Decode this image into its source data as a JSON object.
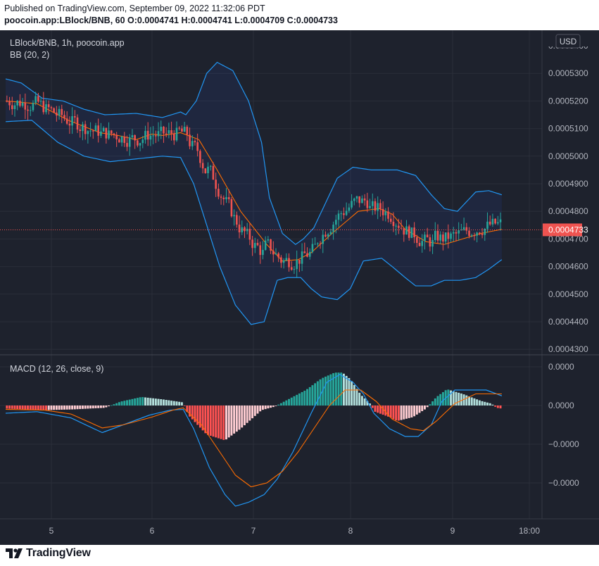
{
  "header": {
    "published": "Published on TradingView.com, September 09, 2022 11:32:06 PDT",
    "symbol": "poocoin.app:LBlock/BNB, 60",
    "open_label": "O:",
    "open": "0.0004741",
    "high_label": "H:",
    "high": "0.0004741",
    "low_label": "L:",
    "low": "0.0004709",
    "close_label": "C:",
    "close": "0.0004733"
  },
  "chart_data": [
    {
      "type": "candlestick",
      "title": "LBlock/BNB, 1h, poocoin.app",
      "indicator_label": "BB (20, 2)",
      "currency": "USD",
      "ylim": [
        0.000428,
        0.000544
      ],
      "y_ticks": [
        "0.0005300",
        "0.0005200",
        "0.0005100",
        "0.0005000",
        "0.0004900",
        "0.0004800",
        "0.0004700",
        "0.0004600",
        "0.0004500",
        "0.0004400",
        "0.0004300"
      ],
      "top_tick_partial": "0.0005400",
      "x_ticks": [
        "5",
        "6",
        "7",
        "8",
        "9",
        "18:00"
      ],
      "last_price": "0.0004733",
      "bb_middle_path": [
        [
          0,
          0.00052
        ],
        [
          12,
          0.000519
        ],
        [
          24,
          0.000513
        ],
        [
          36,
          0.0005085
        ],
        [
          43,
          0.0005075
        ],
        [
          50,
          0.000506
        ],
        [
          56,
          0.000508
        ],
        [
          60,
          0.0005075
        ],
        [
          67,
          0.0005085
        ],
        [
          74,
          0.000506
        ],
        [
          81,
          0.000495
        ],
        [
          90,
          0.00048
        ],
        [
          100,
          0.000468
        ],
        [
          106,
          0.000462
        ],
        [
          112,
          0.0004625
        ],
        [
          117,
          0.000465
        ],
        [
          125,
          0.000472
        ],
        [
          135,
          0.00048
        ],
        [
          143,
          0.000481
        ],
        [
          148,
          0.000479
        ],
        [
          153,
          0.0004735
        ],
        [
          161,
          0.000469
        ],
        [
          168,
          0.000468
        ],
        [
          175,
          0.00047
        ],
        [
          182,
          0.000472
        ],
        [
          190,
          0.0004735
        ]
      ],
      "bb_upper_path": [
        [
          0,
          0.000528
        ],
        [
          6,
          0.0005265
        ],
        [
          14,
          0.000521
        ],
        [
          22,
          0.00052
        ],
        [
          30,
          0.000517
        ],
        [
          38,
          0.000515
        ],
        [
          50,
          0.0005155
        ],
        [
          60,
          0.000514
        ],
        [
          67,
          0.000516
        ],
        [
          69,
          0.000515
        ],
        [
          73,
          0.00052
        ],
        [
          77,
          0.00053
        ],
        [
          81,
          0.000534
        ],
        [
          87,
          0.000531
        ],
        [
          93,
          0.00052
        ],
        [
          98,
          0.000505
        ],
        [
          101,
          0.000485
        ],
        [
          106,
          0.000472
        ],
        [
          111,
          0.000468
        ],
        [
          114,
          0.00047
        ],
        [
          118,
          0.000474
        ],
        [
          122,
          0.000482
        ],
        [
          127,
          0.000492
        ],
        [
          133,
          0.000496
        ],
        [
          140,
          0.000495
        ],
        [
          150,
          0.000495
        ],
        [
          157,
          0.000493
        ],
        [
          163,
          0.000486
        ],
        [
          168,
          0.000481
        ],
        [
          173,
          0.00048
        ],
        [
          180,
          0.000487
        ],
        [
          185,
          0.0004875
        ],
        [
          190,
          0.000486
        ]
      ],
      "bb_lower_path": [
        [
          0,
          0.0005125
        ],
        [
          10,
          0.000513
        ],
        [
          20,
          0.000505
        ],
        [
          30,
          0.0005
        ],
        [
          40,
          0.000498
        ],
        [
          50,
          0.000499
        ],
        [
          60,
          0.0005
        ],
        [
          67,
          0.0004995
        ],
        [
          72,
          0.00049
        ],
        [
          77,
          0.000475
        ],
        [
          82,
          0.00046
        ],
        [
          88,
          0.000446
        ],
        [
          94,
          0.000439
        ],
        [
          99,
          0.00044
        ],
        [
          104,
          0.000455
        ],
        [
          108,
          0.000456
        ],
        [
          113,
          0.000456
        ],
        [
          117,
          0.000452
        ],
        [
          121,
          0.000449
        ],
        [
          127,
          0.000448
        ],
        [
          132,
          0.000452
        ],
        [
          137,
          0.000462
        ],
        [
          144,
          0.000463
        ],
        [
          148,
          0.00046
        ],
        [
          153,
          0.000456
        ],
        [
          157,
          0.000453
        ],
        [
          163,
          0.000453
        ],
        [
          168,
          0.000455
        ],
        [
          174,
          0.000455
        ],
        [
          180,
          0.000456
        ],
        [
          185,
          0.000459
        ],
        [
          190,
          0.0004625
        ]
      ]
    },
    {
      "type": "macd",
      "indicator_label": "MACD (12, 26, close, 9)",
      "ylim": [
        -0.00032,
        0.0001
      ],
      "y_ticks": [
        "0.0000",
        "0.0000",
        "−0.0000",
        "−0.0000"
      ],
      "y_tick_values": [
        0.0001,
        0.0,
        -0.0001,
        -0.0002
      ],
      "x_ticks": [
        "5",
        "6",
        "7",
        "8",
        "9",
        "18:00"
      ],
      "histogram_envelope": [
        [
          0,
          -8e-06
        ],
        [
          15,
          -1.2e-05
        ],
        [
          26,
          -1e-05
        ],
        [
          38,
          -6e-06
        ],
        [
          44,
          1e-05
        ],
        [
          52,
          2.2e-05
        ],
        [
          60,
          1.6e-05
        ],
        [
          68,
          8e-06
        ],
        [
          70,
          -2.5e-05
        ],
        [
          77,
          -7.5e-05
        ],
        [
          84,
          -9e-05
        ],
        [
          90,
          -6e-05
        ],
        [
          98,
          -1.2e-05
        ],
        [
          103,
          -3e-06
        ],
        [
          108,
          1.5e-05
        ],
        [
          115,
          4e-05
        ],
        [
          121,
          7e-05
        ],
        [
          126,
          8.5e-05
        ],
        [
          129,
          8.5e-05
        ],
        [
          132,
          6.8e-05
        ],
        [
          136,
          2.8e-05
        ],
        [
          140,
          2e-06
        ],
        [
          141,
          -1.5e-05
        ],
        [
          147,
          -3e-05
        ],
        [
          150,
          -4e-05
        ],
        [
          156,
          -3e-05
        ],
        [
          161,
          -8e-06
        ],
        [
          165,
          2.2e-05
        ],
        [
          169,
          4.2e-05
        ],
        [
          175,
          3e-05
        ],
        [
          182,
          1.2e-05
        ],
        [
          186,
          5e-06
        ],
        [
          188,
          -6e-06
        ],
        [
          190,
          -8e-06
        ]
      ],
      "macd_path": [
        [
          0,
          -2e-05
        ],
        [
          12,
          -1.6e-05
        ],
        [
          25,
          -3.2e-05
        ],
        [
          37,
          -7e-05
        ],
        [
          45,
          -5e-05
        ],
        [
          55,
          -2.5e-05
        ],
        [
          63,
          -1.2e-05
        ],
        [
          68,
          -1e-05
        ],
        [
          72,
          -6e-05
        ],
        [
          78,
          -0.00016
        ],
        [
          84,
          -0.00023
        ],
        [
          88,
          -0.00026
        ],
        [
          93,
          -0.00025
        ],
        [
          99,
          -0.00023
        ],
        [
          104,
          -0.00019
        ],
        [
          110,
          -0.00012
        ],
        [
          117,
          -2e-05
        ],
        [
          123,
          6e-05
        ],
        [
          128,
          8e-05
        ],
        [
          133,
          6e-05
        ],
        [
          137,
          3e-05
        ],
        [
          141,
          -2e-05
        ],
        [
          147,
          -6e-05
        ],
        [
          153,
          -8e-05
        ],
        [
          158,
          -8e-05
        ],
        [
          163,
          -5e-05
        ],
        [
          167,
          1e-05
        ],
        [
          172,
          4e-05
        ],
        [
          178,
          4e-05
        ],
        [
          184,
          4e-05
        ],
        [
          190,
          2.5e-05
        ]
      ],
      "signal_path": [
        [
          0,
          -1e-05
        ],
        [
          15,
          -1.2e-05
        ],
        [
          25,
          -2.2e-05
        ],
        [
          37,
          -5.8e-05
        ],
        [
          45,
          -5e-05
        ],
        [
          56,
          -3e-05
        ],
        [
          64,
          -1.2e-05
        ],
        [
          68,
          -6e-06
        ],
        [
          75,
          -5e-05
        ],
        [
          82,
          -0.00012
        ],
        [
          88,
          -0.00018
        ],
        [
          94,
          -0.00021
        ],
        [
          100,
          -0.0002
        ],
        [
          106,
          -0.00017
        ],
        [
          112,
          -0.00012
        ],
        [
          118,
          -6e-05
        ],
        [
          124,
          0.0
        ],
        [
          130,
          4e-05
        ],
        [
          136,
          4e-05
        ],
        [
          142,
          1e-05
        ],
        [
          148,
          -3.5e-05
        ],
        [
          155,
          -6e-05
        ],
        [
          160,
          -6.5e-05
        ],
        [
          165,
          -4e-05
        ],
        [
          172,
          5e-06
        ],
        [
          180,
          3e-05
        ],
        [
          190,
          3e-05
        ]
      ]
    }
  ],
  "brand": {
    "name": "TradingView"
  }
}
